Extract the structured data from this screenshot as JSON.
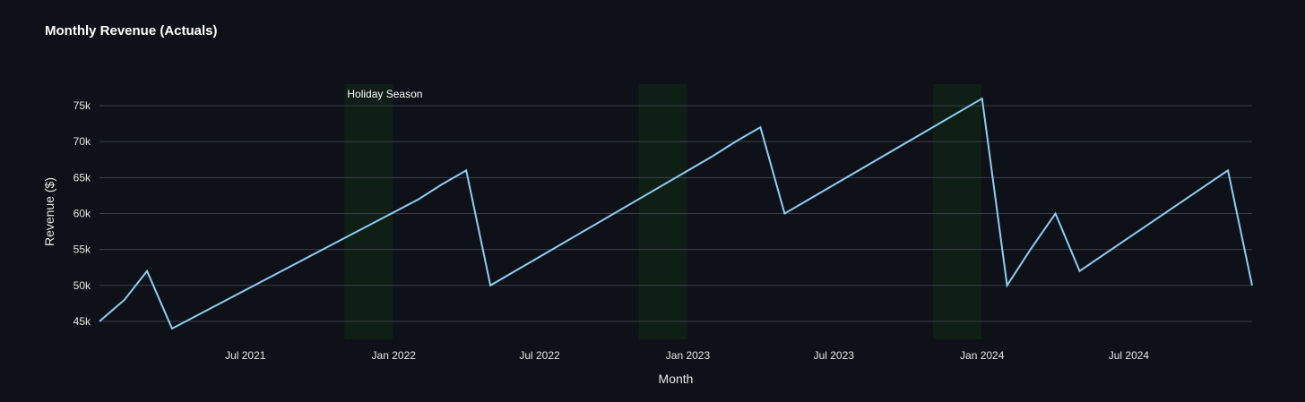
{
  "chart_data": {
    "type": "line",
    "title": "Monthly Revenue (Actuals)",
    "xlabel": "Month",
    "ylabel": "Revenue ($)",
    "x_ticks": [
      "Jul 2021",
      "Jan 2022",
      "Jul 2022",
      "Jan 2023",
      "Jul 2023",
      "Jan 2024",
      "Jul 2024"
    ],
    "y_ticks": [
      {
        "value": 45000,
        "label": "45k"
      },
      {
        "value": 50000,
        "label": "50k"
      },
      {
        "value": 55000,
        "label": "55k"
      },
      {
        "value": 60000,
        "label": "60k"
      },
      {
        "value": 65000,
        "label": "65k"
      },
      {
        "value": 70000,
        "label": "70k"
      },
      {
        "value": 75000,
        "label": "75k"
      }
    ],
    "xlim": [
      "2021-01-01",
      "2024-12-01"
    ],
    "ylim": [
      42500,
      78000
    ],
    "grid": "horizontal",
    "colors": {
      "line": "#8ecdf0",
      "band": "#0f1f16",
      "grid": "#3a3f4a",
      "background": "#0e1117"
    },
    "series": [
      {
        "points": [
          {
            "x": "2021-01-01",
            "y": 45000
          },
          {
            "x": "2021-02-01",
            "y": 48000
          },
          {
            "x": "2021-03-01",
            "y": 52000
          },
          {
            "x": "2021-04-01",
            "y": 44000
          },
          {
            "x": "2022-02-01",
            "y": 62000
          },
          {
            "x": "2022-03-01",
            "y": 64000
          },
          {
            "x": "2022-04-01",
            "y": 66000
          },
          {
            "x": "2022-05-01",
            "y": 50000
          },
          {
            "x": "2023-02-01",
            "y": 68000
          },
          {
            "x": "2023-03-01",
            "y": 70000
          },
          {
            "x": "2023-04-01",
            "y": 72000
          },
          {
            "x": "2023-05-01",
            "y": 60000
          },
          {
            "x": "2024-01-01",
            "y": 76000
          },
          {
            "x": "2024-02-01",
            "y": 50000
          },
          {
            "x": "2024-03-01",
            "y": 55000
          },
          {
            "x": "2024-04-01",
            "y": 60000
          },
          {
            "x": "2024-05-01",
            "y": 52000
          },
          {
            "x": "2024-11-01",
            "y": 66000
          },
          {
            "x": "2024-12-01",
            "y": 50000
          }
        ]
      }
    ],
    "bands": [
      {
        "start": "2021-11-01",
        "end": "2021-12-31",
        "label": "Holiday Season"
      },
      {
        "start": "2022-11-01",
        "end": "2022-12-31",
        "label": ""
      },
      {
        "start": "2023-11-01",
        "end": "2023-12-31",
        "label": ""
      }
    ]
  }
}
